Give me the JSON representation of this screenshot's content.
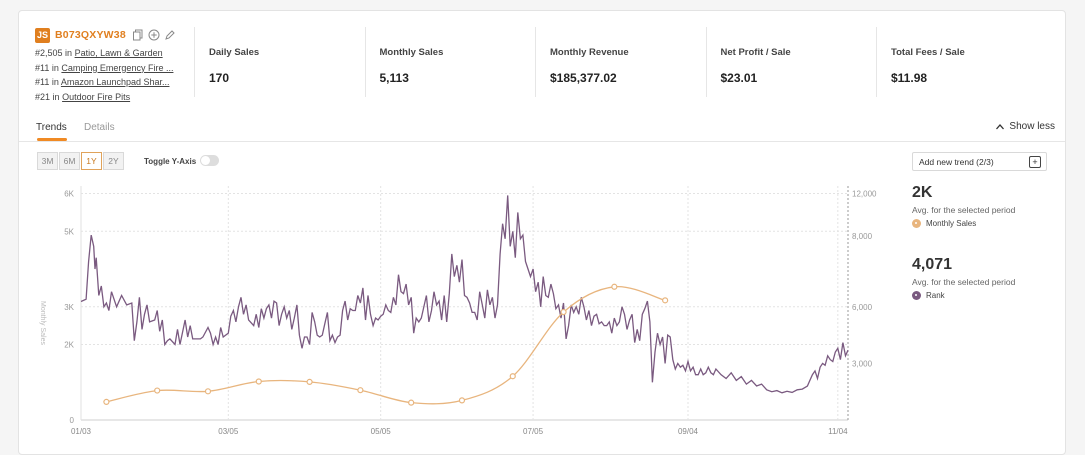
{
  "product": {
    "logo": "JS",
    "asin": "B073QXYW38",
    "ranks": [
      {
        "rank": "#2,505",
        "in": "in",
        "category": "Patio, Lawn & Garden"
      },
      {
        "rank": "#11",
        "in": "in",
        "category": "Camping Emergency Fire ..."
      },
      {
        "rank": "#11",
        "in": "in",
        "category": "Amazon Launchpad Shar..."
      },
      {
        "rank": "#21",
        "in": "in",
        "category": "Outdoor Fire Pits"
      }
    ]
  },
  "stats": [
    {
      "label": "Daily Sales",
      "value": "170"
    },
    {
      "label": "Monthly Sales",
      "value": "5,113"
    },
    {
      "label": "Monthly Revenue",
      "value": "$185,377.02"
    },
    {
      "label": "Net Profit / Sale",
      "value": "$23.01"
    },
    {
      "label": "Total Fees / Sale",
      "value": "$11.98"
    }
  ],
  "tabs": {
    "trends": "Trends",
    "details": "Details",
    "show_less": "Show less"
  },
  "controls": {
    "periods": [
      "3M",
      "6M",
      "1Y",
      "2Y"
    ],
    "active_period": "1Y",
    "toggle_label": "Toggle Y-Axis",
    "add_trend": "Add new trend (2/3)"
  },
  "summary": [
    {
      "value": "2K",
      "caption": "Avg. for the selected period",
      "legend": "Monthly Sales",
      "color": "#e8b57e"
    },
    {
      "value": "4,071",
      "caption": "Avg. for the selected period",
      "legend": "Rank",
      "color": "#7a5a80"
    }
  ],
  "colors": {
    "accent": "#f08a24",
    "sales": "#e8b57e",
    "rank": "#7a5a80"
  },
  "chart_data": {
    "type": "line",
    "left_axis_title": "Monthly Sales",
    "left_ticks": [
      "6K",
      "5K",
      "3K",
      "2K",
      "0"
    ],
    "right_ticks": [
      "12,000",
      "8,000",
      "6,000",
      "3,000"
    ],
    "x_ticks": [
      "01/03",
      "03/05",
      "05/05",
      "07/05",
      "09/04",
      "11/04"
    ],
    "series": [
      {
        "name": "Monthly Sales",
        "x": [
          10,
          30,
          50,
          70,
          90,
          110,
          130,
          150,
          170,
          190,
          210,
          230
        ],
        "values": [
          480,
          780,
          760,
          1020,
          1010,
          790,
          460,
          520,
          1160,
          2860,
          3530,
          3170
        ]
      },
      {
        "name": "Rank",
        "points": [
          [
            0,
            3140
          ],
          [
            2,
            3200
          ],
          [
            3,
            4200
          ],
          [
            4,
            4900
          ],
          [
            5,
            4600
          ],
          [
            5.5,
            4000
          ],
          [
            6,
            4300
          ],
          [
            7,
            3300
          ],
          [
            8,
            3550
          ],
          [
            9,
            3000
          ],
          [
            10,
            3100
          ],
          [
            11,
            2900
          ],
          [
            12,
            3400
          ],
          [
            14,
            3000
          ],
          [
            16,
            3300
          ],
          [
            18,
            3050
          ],
          [
            20,
            3100
          ],
          [
            21,
            2100
          ],
          [
            22,
            2600
          ],
          [
            23,
            3250
          ],
          [
            24,
            2400
          ],
          [
            25,
            2800
          ],
          [
            26,
            3050
          ],
          [
            27,
            2600
          ],
          [
            29,
            2650
          ],
          [
            30,
            2900
          ],
          [
            31,
            2350
          ],
          [
            32,
            2650
          ],
          [
            33,
            2000
          ],
          [
            34,
            2100
          ],
          [
            35,
            2150
          ],
          [
            37,
            2000
          ],
          [
            38,
            2400
          ],
          [
            39,
            2000
          ],
          [
            41,
            2650
          ],
          [
            42,
            2200
          ],
          [
            43,
            2500
          ],
          [
            44,
            2150
          ],
          [
            45,
            2150
          ],
          [
            47,
            2150
          ],
          [
            48,
            2200
          ],
          [
            50,
            2450
          ],
          [
            51,
            2300
          ],
          [
            52,
            2000
          ],
          [
            53,
            2200
          ],
          [
            54,
            2000
          ],
          [
            55,
            2450
          ],
          [
            56,
            2200
          ],
          [
            58,
            2300
          ],
          [
            59,
            2750
          ],
          [
            60,
            2900
          ],
          [
            61,
            2600
          ],
          [
            62,
            3000
          ],
          [
            63,
            3250
          ],
          [
            64,
            2800
          ],
          [
            65,
            3050
          ],
          [
            66,
            2650
          ],
          [
            68,
            2500
          ],
          [
            69,
            2800
          ],
          [
            70,
            2450
          ],
          [
            71,
            2950
          ],
          [
            72,
            2700
          ],
          [
            73,
            2950
          ],
          [
            74,
            3050
          ],
          [
            75,
            2700
          ],
          [
            76,
            3150
          ],
          [
            77,
            3100
          ],
          [
            78,
            2500
          ],
          [
            79,
            2800
          ],
          [
            80,
            3000
          ],
          [
            81,
            2700
          ],
          [
            82,
            2900
          ],
          [
            83,
            2400
          ],
          [
            84,
            2700
          ],
          [
            85,
            3050
          ],
          [
            86,
            2250
          ],
          [
            87,
            1900
          ],
          [
            88,
            2200
          ],
          [
            89,
            2200
          ],
          [
            90,
            2000
          ],
          [
            91,
            2850
          ],
          [
            92,
            2600
          ],
          [
            93,
            2250
          ],
          [
            94,
            2200
          ],
          [
            95,
            2250
          ],
          [
            96,
            2550
          ],
          [
            97,
            2850
          ],
          [
            98,
            2100
          ],
          [
            99,
            2250
          ],
          [
            100,
            2050
          ],
          [
            101,
            2200
          ],
          [
            102,
            2250
          ],
          [
            103,
            2900
          ],
          [
            104,
            3150
          ],
          [
            105,
            2650
          ],
          [
            106,
            2950
          ],
          [
            107,
            2900
          ],
          [
            108,
            2900
          ],
          [
            109,
            3300
          ],
          [
            110,
            3100
          ],
          [
            111,
            3500
          ],
          [
            112,
            2650
          ],
          [
            113,
            3300
          ],
          [
            114,
            2800
          ],
          [
            115,
            2500
          ],
          [
            116,
            2700
          ],
          [
            117,
            2650
          ],
          [
            118,
            2750
          ],
          [
            119,
            2800
          ],
          [
            120,
            3050
          ],
          [
            121,
            2900
          ],
          [
            122,
            2850
          ],
          [
            123,
            3250
          ],
          [
            124,
            3050
          ],
          [
            125,
            3850
          ],
          [
            126,
            3400
          ],
          [
            127,
            3350
          ],
          [
            128,
            3600
          ],
          [
            129,
            3050
          ],
          [
            130,
            3250
          ],
          [
            131,
            2300
          ],
          [
            132,
            2700
          ],
          [
            133,
            2600
          ],
          [
            134,
            2700
          ],
          [
            136,
            3300
          ],
          [
            137,
            2600
          ],
          [
            138,
            2900
          ],
          [
            139,
            3400
          ],
          [
            140,
            3050
          ],
          [
            141,
            3150
          ],
          [
            142,
            2650
          ],
          [
            143,
            3300
          ],
          [
            144,
            2600
          ],
          [
            145,
            3350
          ],
          [
            146,
            4400
          ],
          [
            147,
            3800
          ],
          [
            148,
            4100
          ],
          [
            149,
            3650
          ],
          [
            150,
            4250
          ],
          [
            151,
            3300
          ],
          [
            152,
            3250
          ],
          [
            153,
            3100
          ],
          [
            154,
            2850
          ],
          [
            155,
            2850
          ],
          [
            156,
            2650
          ],
          [
            157,
            3400
          ],
          [
            158,
            3050
          ],
          [
            159,
            2700
          ],
          [
            160,
            3450
          ],
          [
            161,
            3050
          ],
          [
            162,
            3250
          ],
          [
            163,
            2700
          ],
          [
            164,
            3050
          ],
          [
            165,
            4400
          ],
          [
            166,
            5200
          ],
          [
            167,
            4800
          ],
          [
            168,
            5950
          ],
          [
            169,
            4600
          ],
          [
            170,
            5000
          ],
          [
            171,
            4300
          ],
          [
            172,
            5500
          ],
          [
            173,
            4800
          ],
          [
            174,
            4900
          ],
          [
            175,
            4200
          ],
          [
            176,
            4000
          ],
          [
            177,
            3800
          ],
          [
            178,
            4000
          ],
          [
            179,
            3400
          ],
          [
            180,
            3650
          ],
          [
            181,
            3000
          ],
          [
            182,
            3800
          ],
          [
            183,
            3300
          ],
          [
            184,
            3250
          ],
          [
            185,
            3600
          ],
          [
            186,
            3350
          ],
          [
            187,
            2950
          ],
          [
            188,
            3050
          ],
          [
            189,
            2700
          ],
          [
            190,
            3100
          ],
          [
            191,
            2150
          ],
          [
            192,
            2500
          ],
          [
            193,
            3050
          ],
          [
            194,
            2850
          ],
          [
            195,
            3000
          ],
          [
            196,
            2800
          ],
          [
            197,
            3250
          ],
          [
            198,
            3000
          ],
          [
            199,
            2650
          ],
          [
            200,
            2900
          ],
          [
            201,
            2500
          ],
          [
            202,
            2750
          ],
          [
            203,
            2800
          ],
          [
            204,
            2550
          ],
          [
            205,
            2600
          ],
          [
            206,
            2500
          ],
          [
            207,
            2500
          ],
          [
            208,
            2600
          ],
          [
            209,
            2300
          ],
          [
            210,
            2700
          ],
          [
            211,
            2500
          ],
          [
            212,
            2600
          ],
          [
            213,
            3000
          ],
          [
            214,
            2800
          ],
          [
            215,
            2400
          ],
          [
            216,
            2650
          ],
          [
            217,
            2800
          ],
          [
            218,
            2050
          ],
          [
            219,
            2400
          ],
          [
            220,
            2100
          ],
          [
            221,
            2800
          ],
          [
            222,
            2950
          ],
          [
            223,
            3150
          ],
          [
            224,
            2600
          ],
          [
            225,
            1000
          ],
          [
            226,
            1800
          ],
          [
            227,
            2300
          ],
          [
            228,
            2000
          ],
          [
            229,
            2200
          ],
          [
            230,
            1500
          ],
          [
            231,
            2250
          ],
          [
            232,
            2200
          ],
          [
            233,
            1600
          ],
          [
            234,
            1350
          ],
          [
            235,
            1500
          ],
          [
            236,
            1400
          ],
          [
            237,
            1450
          ],
          [
            238,
            1300
          ],
          [
            239,
            1550
          ],
          [
            240,
            1300
          ],
          [
            241,
            1400
          ],
          [
            242,
            1200
          ],
          [
            243,
            1200
          ],
          [
            244,
            1350
          ],
          [
            245,
            1200
          ],
          [
            246,
            1250
          ],
          [
            247,
            1400
          ],
          [
            248,
            1250
          ],
          [
            249,
            1200
          ],
          [
            250,
            1350
          ],
          [
            252,
            1200
          ],
          [
            254,
            1100
          ],
          [
            256,
            1250
          ],
          [
            258,
            1050
          ],
          [
            260,
            1150
          ],
          [
            262,
            950
          ],
          [
            264,
            1050
          ],
          [
            266,
            900
          ],
          [
            268,
            950
          ],
          [
            270,
            800
          ],
          [
            272,
            750
          ],
          [
            274,
            780
          ],
          [
            276,
            720
          ],
          [
            278,
            760
          ],
          [
            280,
            730
          ],
          [
            282,
            800
          ],
          [
            284,
            820
          ],
          [
            286,
            900
          ],
          [
            288,
            1200
          ],
          [
            289,
            1300
          ],
          [
            290,
            1100
          ],
          [
            291,
            1400
          ],
          [
            292,
            1500
          ],
          [
            293,
            1450
          ],
          [
            294,
            1700
          ],
          [
            295,
            1600
          ],
          [
            296,
            1550
          ],
          [
            297,
            1800
          ],
          [
            298,
            1900
          ],
          [
            299,
            1600
          ],
          [
            300,
            2050
          ],
          [
            301,
            1700
          ],
          [
            302,
            1850
          ]
        ]
      }
    ],
    "xlim": [
      0,
      302
    ],
    "ylim": [
      0,
      6200
    ]
  }
}
